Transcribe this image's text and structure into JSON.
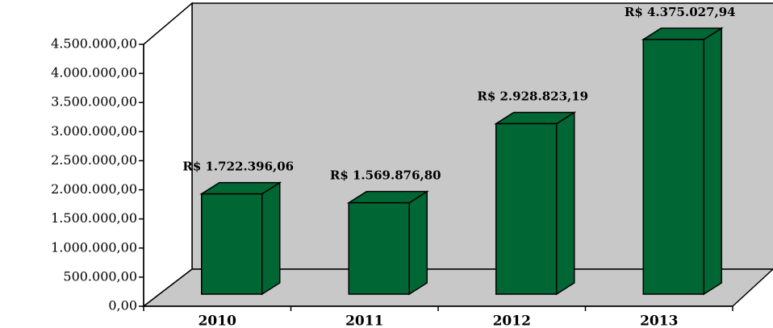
{
  "chart_data": {
    "type": "bar3d",
    "categories": [
      "2010",
      "2011",
      "2012",
      "2013"
    ],
    "values": [
      1722396.06,
      1569876.8,
      2928823.19,
      4375027.94
    ],
    "value_labels": [
      "R$ 1.722.396,06",
      "R$ 1.569.876,80",
      "R$ 2.928.823,19",
      "R$ 4.375.027,94"
    ],
    "color": "#006633",
    "ylim": [
      0,
      4500000
    ],
    "yticks": [
      {
        "value": 0,
        "label": "0,00"
      },
      {
        "value": 500000,
        "label": "500.000,00"
      },
      {
        "value": 1000000,
        "label": "1.000.000,00"
      },
      {
        "value": 1500000,
        "label": "1.500.000,00"
      },
      {
        "value": 2000000,
        "label": "2.000.000,00"
      },
      {
        "value": 2500000,
        "label": "2.500.000,00"
      },
      {
        "value": 3000000,
        "label": "3.000.000,00"
      },
      {
        "value": 3500000,
        "label": "3.500.000,00"
      },
      {
        "value": 4000000,
        "label": "4.000.000,00"
      },
      {
        "value": 4500000,
        "label": "4.500.000,00"
      }
    ]
  }
}
